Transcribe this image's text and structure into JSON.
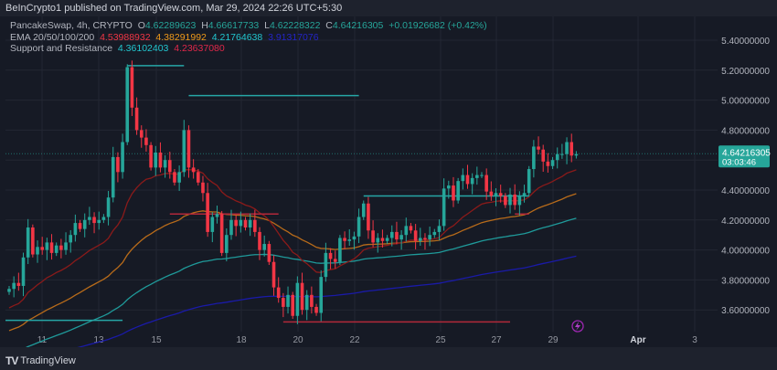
{
  "header": {
    "published": "BeInCrypto1 published on TradingView.com, Mar 29, 2024 22:26 UTC+5:30"
  },
  "legend": {
    "symbol": "PancakeSwap, 4h, CRYPTO",
    "o_label": "O",
    "o": "4.62289623",
    "h_label": "H",
    "h": "4.66617733",
    "l_label": "L",
    "l": "4.62228322",
    "c_label": "C",
    "c": "4.64216305",
    "change": "+0.01926682 (+0.42%)",
    "ema_label": "EMA 20/50/100/200",
    "ema20": "4.53988932",
    "ema50": "4.38291992",
    "ema100": "4.21764638",
    "ema200": "3.91317076",
    "sr_label": "Support and Resistance",
    "sr1": "4.36102403",
    "sr2": "4.23637080"
  },
  "price_axis": {
    "ticks": [
      "5.40000000",
      "5.20000000",
      "5.00000000",
      "4.80000000",
      "4.40000000",
      "4.20000000",
      "4.00000000",
      "3.80000000",
      "3.60000000"
    ],
    "current_price": "4.64216305",
    "countdown": "03:03:46"
  },
  "time_axis": {
    "ticks": [
      "11",
      "13",
      "15",
      "18",
      "20",
      "22",
      "25",
      "27",
      "29",
      "Apr",
      "3"
    ]
  },
  "footer": {
    "brand": "TradingView"
  },
  "colors": {
    "up": "#26a69a",
    "down": "#f23645",
    "ema20": "#8b1a1a",
    "ema50": "#b86b1a",
    "ema100": "#1f9a9a",
    "ema200": "#1a1aa8",
    "sr_teal": "#26a6a6",
    "sr_red": "#b2283a"
  },
  "chart_data": {
    "type": "candlestick",
    "title": "PancakeSwap, 4h, CRYPTO",
    "ylim": [
      3.5,
      5.5
    ],
    "closes": [
      3.74,
      3.78,
      3.76,
      3.95,
      4.15,
      3.97,
      4.02,
      4.0,
      4.05,
      3.98,
      4.03,
      4.0,
      4.05,
      4.1,
      4.18,
      4.14,
      4.2,
      4.22,
      4.18,
      4.2,
      4.22,
      4.35,
      4.62,
      4.52,
      4.72,
      5.22,
      4.95,
      4.8,
      4.75,
      4.7,
      4.55,
      4.65,
      4.55,
      4.6,
      4.52,
      4.45,
      4.52,
      4.8,
      4.55,
      4.52,
      4.45,
      4.38,
      4.12,
      4.22,
      4.24,
      3.98,
      4.1,
      4.2,
      4.16,
      4.2,
      4.15,
      4.2,
      4.12,
      4.0,
      4.04,
      3.92,
      3.75,
      3.68,
      3.62,
      3.7,
      3.56,
      3.78,
      3.6,
      3.7,
      3.62,
      3.58,
      3.82,
      3.98,
      3.94,
      3.92,
      4.08,
      4.06,
      4.07,
      4.09,
      4.22,
      4.31,
      4.13,
      4.05,
      4.08,
      4.06,
      4.08,
      4.12,
      4.07,
      4.1,
      4.16,
      4.13,
      4.06,
      4.08,
      4.07,
      4.1,
      4.12,
      4.16,
      4.41,
      4.43,
      4.33,
      4.46,
      4.5,
      4.44,
      4.48,
      4.5,
      4.5,
      4.39,
      4.36,
      4.38,
      4.36,
      4.3,
      4.37,
      4.3,
      4.36,
      4.38,
      4.54,
      4.69,
      4.67,
      4.59,
      4.56,
      4.6,
      4.64,
      4.64,
      4.72,
      4.63,
      4.64
    ],
    "ema_seeds": {
      "ema20": 3.6,
      "ema50": 3.45,
      "ema100": 3.3,
      "ema200": 3.24
    },
    "levels": [
      {
        "price": 5.23,
        "from": 25,
        "to": 37,
        "color": "teal"
      },
      {
        "price": 5.03,
        "from": 38,
        "to": 74,
        "color": "teal"
      },
      {
        "price": 4.24,
        "from": 34,
        "to": 57,
        "color": "red"
      },
      {
        "price": 3.53,
        "from": -1,
        "to": 24,
        "color": "teal"
      },
      {
        "price": 3.52,
        "from": 58,
        "to": 106,
        "color": "red"
      },
      {
        "price": 4.36,
        "from": 75,
        "to": 110,
        "color": "teal"
      },
      {
        "price": 4.24,
        "from": 107,
        "to": 110,
        "color": "red"
      }
    ]
  }
}
